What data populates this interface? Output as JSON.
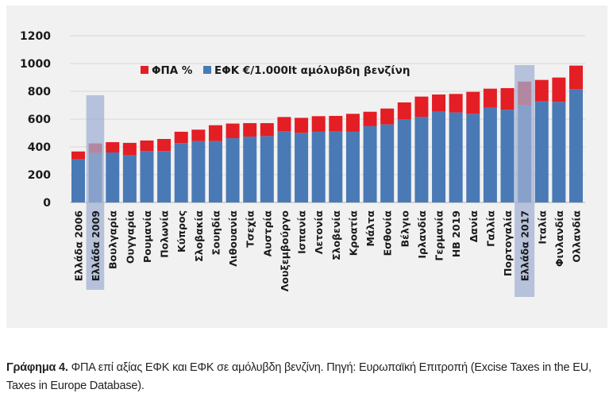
{
  "chart_data": {
    "type": "bar",
    "stacked": true,
    "title": "",
    "xlabel": "",
    "ylabel": "",
    "ylim": [
      0,
      1200
    ],
    "yticks": [
      "0",
      "200",
      "400",
      "600",
      "800",
      "1000",
      "1200"
    ],
    "ytick_values": [
      0,
      200,
      400,
      600,
      800,
      1000,
      1200
    ],
    "grid": true,
    "legend_position": "top-center",
    "categories": [
      "Ελλάδα 2006",
      "Ελλάδα 2009",
      "Βουλγαρία",
      "Ουγγαρία",
      "Ρουμανία",
      "Πολωνία",
      "Κύπρος",
      "Σλοβακία",
      "Σουηδία",
      "Λιθουανία",
      "Τσεχία",
      "Αυστρία",
      "Λουξεμβούργο",
      "Ισπανία",
      "Λετονία",
      "Σλοβενία",
      "Κροατία",
      "Μάλτα",
      "Εσθονία",
      "Βέλγιο",
      "Ιρλανδία",
      "Γερμανία",
      "ΗΒ 2019",
      "Δανία",
      "Γαλλία",
      "Πορτογαλία",
      "Ελλάδα 2017",
      "Ιταλία",
      "Φινλανδία",
      "Ολλανδία"
    ],
    "series": [
      {
        "name": "ΕΦΚ €/1.000lt αμόλυβδη βενζίνη",
        "color": "#4a7ab5",
        "values": [
          310,
          356,
          360,
          339,
          371,
          370,
          427,
          442,
          442,
          463,
          474,
          478,
          514,
          501,
          509,
          512,
          509,
          549,
          562,
          600,
          617,
          653,
          648,
          638,
          682,
          667,
          699,
          728,
          724,
          815
        ]
      },
      {
        "name": "ΦΠΑ %",
        "color": "#e31e24",
        "values": [
          57,
          69,
          74,
          90,
          75,
          87,
          82,
          82,
          114,
          105,
          97,
          93,
          101,
          108,
          112,
          111,
          129,
          104,
          114,
          120,
          145,
          124,
          133,
          158,
          137,
          156,
          171,
          154,
          175,
          170
        ]
      }
    ],
    "legend": [
      {
        "label": "ΦΠΑ %",
        "color": "#e31e24"
      },
      {
        "label": "ΕΦΚ €/1.000lt αμόλυβδη βενζίνη",
        "color": "#4a7ab5"
      }
    ],
    "highlighted_categories": [
      "Ελλάδα 2009",
      "Βουλγαρία",
      "Ελλάδα 2017"
    ],
    "highlight_color": "#9fb0d3"
  },
  "caption": {
    "label": "Γράφημα 4.",
    "text": " ΦΠΑ επί αξίας ΕΦΚ και ΕΦΚ σε αμόλυβδη βενζίνη. Πηγή: Ευρωπαϊκή Επιτροπή (Excise Taxes in the EU, Taxes in Europe Database)."
  }
}
